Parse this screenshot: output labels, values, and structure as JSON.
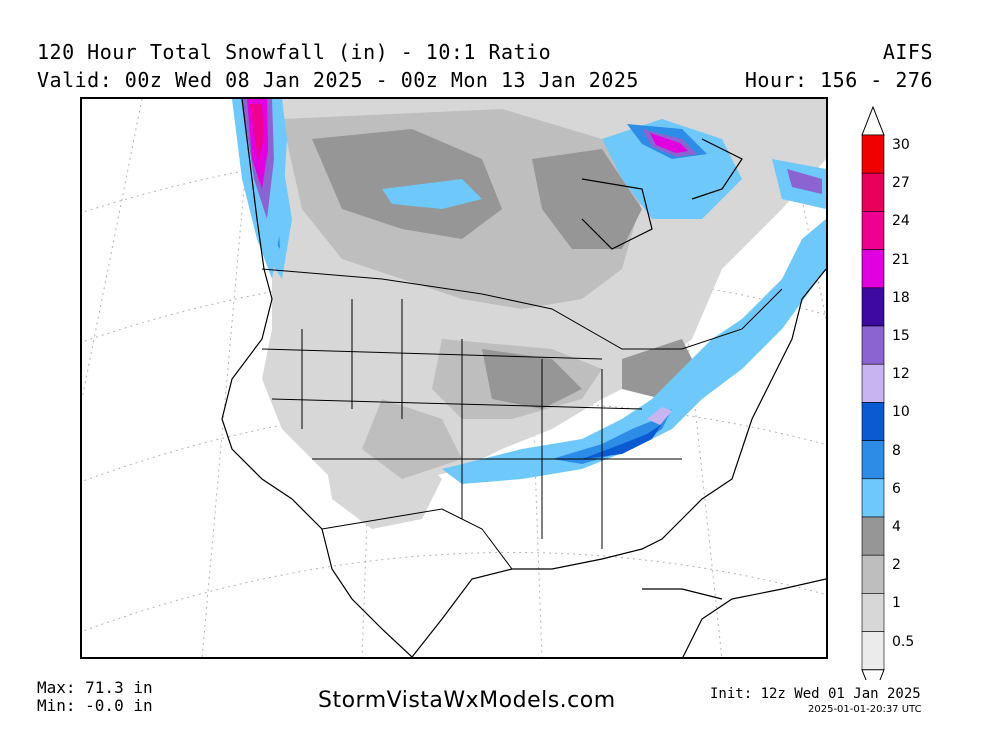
{
  "header": {
    "title": "120 Hour Total Snowfall (in) - 10:1 Ratio",
    "model": "AIFS",
    "valid": "Valid: 00z Wed 08 Jan 2025 - 00z Mon 13 Jan 2025",
    "hour": "Hour: 156 - 276"
  },
  "legend": {
    "levels": [
      "30",
      "27",
      "24",
      "21",
      "18",
      "15",
      "12",
      "10",
      "8",
      "6",
      "4",
      "2",
      "1",
      "0.5"
    ],
    "colors": [
      "#f00000",
      "#e8005a",
      "#f00090",
      "#e000e0",
      "#3c0aa0",
      "#8c64d2",
      "#c8b4f0",
      "#0a5ad2",
      "#2d8ce6",
      "#6ec8fa",
      "#969696",
      "#bebebe",
      "#d7d7d7",
      "#ebebeb"
    ]
  },
  "stats": {
    "max": "Max: 71.3 in",
    "min": "Min: -0.0 in"
  },
  "footer": {
    "site": "StormVistaWxModels.com",
    "init": "Init: 12z Wed 01 Jan 2025",
    "stamp": "2025-01-01-20:37 UTC"
  }
}
